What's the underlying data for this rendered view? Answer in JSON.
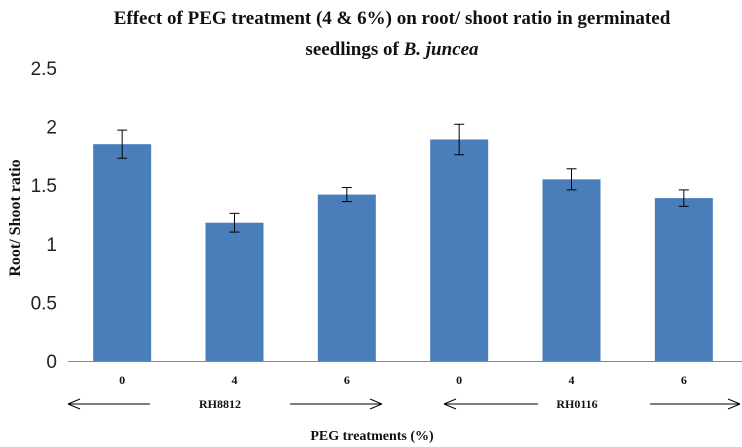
{
  "chart_data": {
    "type": "bar",
    "title_line1": "Effect of PEG treatment (4 & 6%) on root/ shoot ratio in germinated",
    "title_line2_prefix": "seedlings of ",
    "title_line2_italic": "B. juncea",
    "ylabel": "Root/ Shoot ratio",
    "xlabel": "PEG treatments (%)",
    "ylim": [
      0,
      2.5
    ],
    "yticks": [
      "0",
      "0.5",
      "1",
      "1.5",
      "2",
      "2.5"
    ],
    "categories": [
      "0",
      "4",
      "6",
      "0",
      "4",
      "6"
    ],
    "groups": [
      "RH8812",
      "RH0116"
    ],
    "values": [
      1.85,
      1.18,
      1.42,
      1.89,
      1.55,
      1.39
    ],
    "errors": [
      0.12,
      0.08,
      0.06,
      0.13,
      0.09,
      0.07
    ],
    "bar_color": "#4a7ebb",
    "grid": false,
    "legend": "none"
  }
}
